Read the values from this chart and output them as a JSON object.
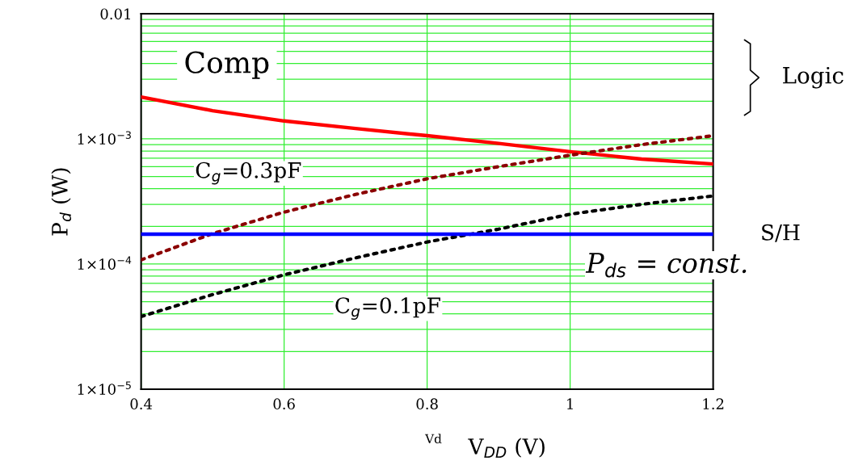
{
  "chart_data": {
    "type": "line",
    "xlabel": "V$_{DD}$ (V)",
    "ylabel": "P$_{d}$ (W)",
    "log": "y",
    "xlim": [
      0.4,
      1.2
    ],
    "xticks": [
      0.4,
      0.6,
      0.8,
      1,
      1.2
    ],
    "ylim": [
      1e-05,
      0.01
    ],
    "yticks": [
      {
        "value": 1e-05,
        "label": "1×10$^{−5}$"
      },
      {
        "value": 0.0001,
        "label": "1×10$^{−4}$"
      },
      {
        "value": 0.001,
        "label": "1×10$^{−3}$"
      },
      {
        "value": 0.01,
        "label": "0.01"
      }
    ],
    "grid": true,
    "x": [
      0.4,
      0.5,
      0.6,
      0.7,
      0.8,
      0.9,
      1.0,
      1.1,
      1.2
    ],
    "series": [
      {
        "name": "Comp",
        "color": "#ff0000",
        "line_style": "solid",
        "values": [
          0.00216,
          0.00168,
          0.00139,
          0.00121,
          0.00106,
          0.00092,
          0.00079,
          0.00069,
          0.00063
        ]
      },
      {
        "name": "C$_{g}$=0.3pF",
        "color": "#8b0000",
        "line_style": "dotted",
        "values": [
          0.000108,
          0.000175,
          0.00026,
          0.00036,
          0.00048,
          0.0006,
          0.00074,
          0.0009,
          0.00106
        ]
      },
      {
        "name": "C$_{g}$=0.1pF",
        "color": "#000000",
        "line_style": "dotted",
        "values": [
          3.8e-05,
          5.7e-05,
          8.2e-05,
          0.000112,
          0.00015,
          0.00019,
          0.00025,
          0.0003,
          0.00035
        ]
      },
      {
        "name": "S/H",
        "color": "#0000ff",
        "line_style": "solid",
        "values": [
          0.000173,
          0.000173,
          0.000173,
          0.000173,
          0.000173,
          0.000173,
          0.000173,
          0.000173,
          0.000173
        ]
      }
    ],
    "annotations": [
      "Logic",
      "P$_{ds}$ = const.",
      "Vd"
    ]
  }
}
